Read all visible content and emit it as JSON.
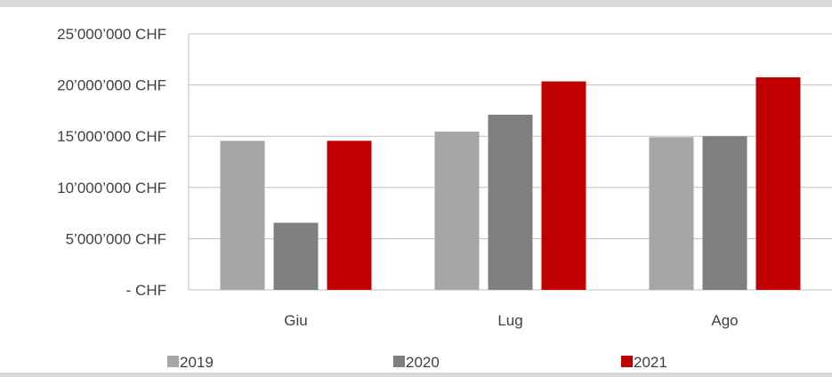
{
  "chart_data": {
    "type": "bar",
    "categories": [
      "Giu",
      "Lug",
      "Ago"
    ],
    "series": [
      {
        "name": "2019",
        "values": [
          14550000,
          15450000,
          14900000
        ],
        "color": "#a6a6a6"
      },
      {
        "name": "2020",
        "values": [
          6550000,
          17100000,
          15000000
        ],
        "color": "#7f7f7f"
      },
      {
        "name": "2021",
        "values": [
          14550000,
          20350000,
          20750000
        ],
        "color": "#c00000"
      }
    ],
    "y_ticks": [
      {
        "value": 0,
        "label": "-   CHF"
      },
      {
        "value": 5000000,
        "label": "5’000’000 CHF"
      },
      {
        "value": 10000000,
        "label": "10’000’000 CHF"
      },
      {
        "value": 15000000,
        "label": "15’000’000 CHF"
      },
      {
        "value": 20000000,
        "label": "20’000’000 CHF"
      },
      {
        "value": 25000000,
        "label": "25’000’000 CHF"
      }
    ],
    "ylim": [
      0,
      25000000
    ],
    "grid": true,
    "legend_position": "bottom",
    "title": "",
    "xlabel": "",
    "ylabel": "",
    "background_color": "#ffffff",
    "grid_color": "#bfbfbf",
    "text_color": "#404040"
  }
}
